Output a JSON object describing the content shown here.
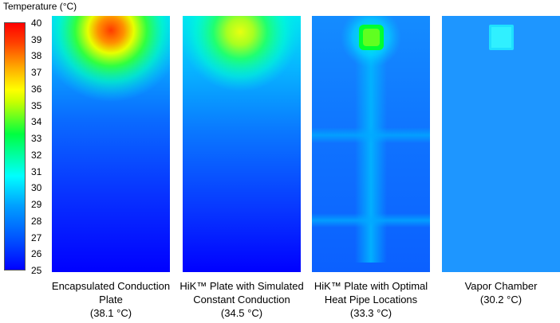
{
  "legend": {
    "title": "Temperature  (°C)",
    "ticks": [
      "40",
      "39",
      "38",
      "37",
      "36",
      "35",
      "34",
      "33",
      "32",
      "31",
      "30",
      "29",
      "28",
      "27",
      "26",
      "25"
    ],
    "colors": [
      "#0000ff",
      "#0050ff",
      "#00a0ff",
      "#00ffff",
      "#00ff40",
      "#c8ff00",
      "#ffff00",
      "#ffaa00",
      "#ff4000",
      "#ff0000"
    ]
  },
  "panels": [
    {
      "line1": "Encapsulated Conduction",
      "line2": "Plate",
      "max_temp": "(38.1 °C)"
    },
    {
      "line1": "HiK™ Plate with Simulated",
      "line2": "Constant Conduction",
      "max_temp": "(34.5 °C)"
    },
    {
      "line1": "HiK™ Plate with Optimal",
      "line2": "Heat Pipe Locations",
      "max_temp": "(33.3 °C)"
    },
    {
      "line1": "Vapor Chamber",
      "line2": "",
      "max_temp": "(30.2 °C)"
    }
  ]
}
